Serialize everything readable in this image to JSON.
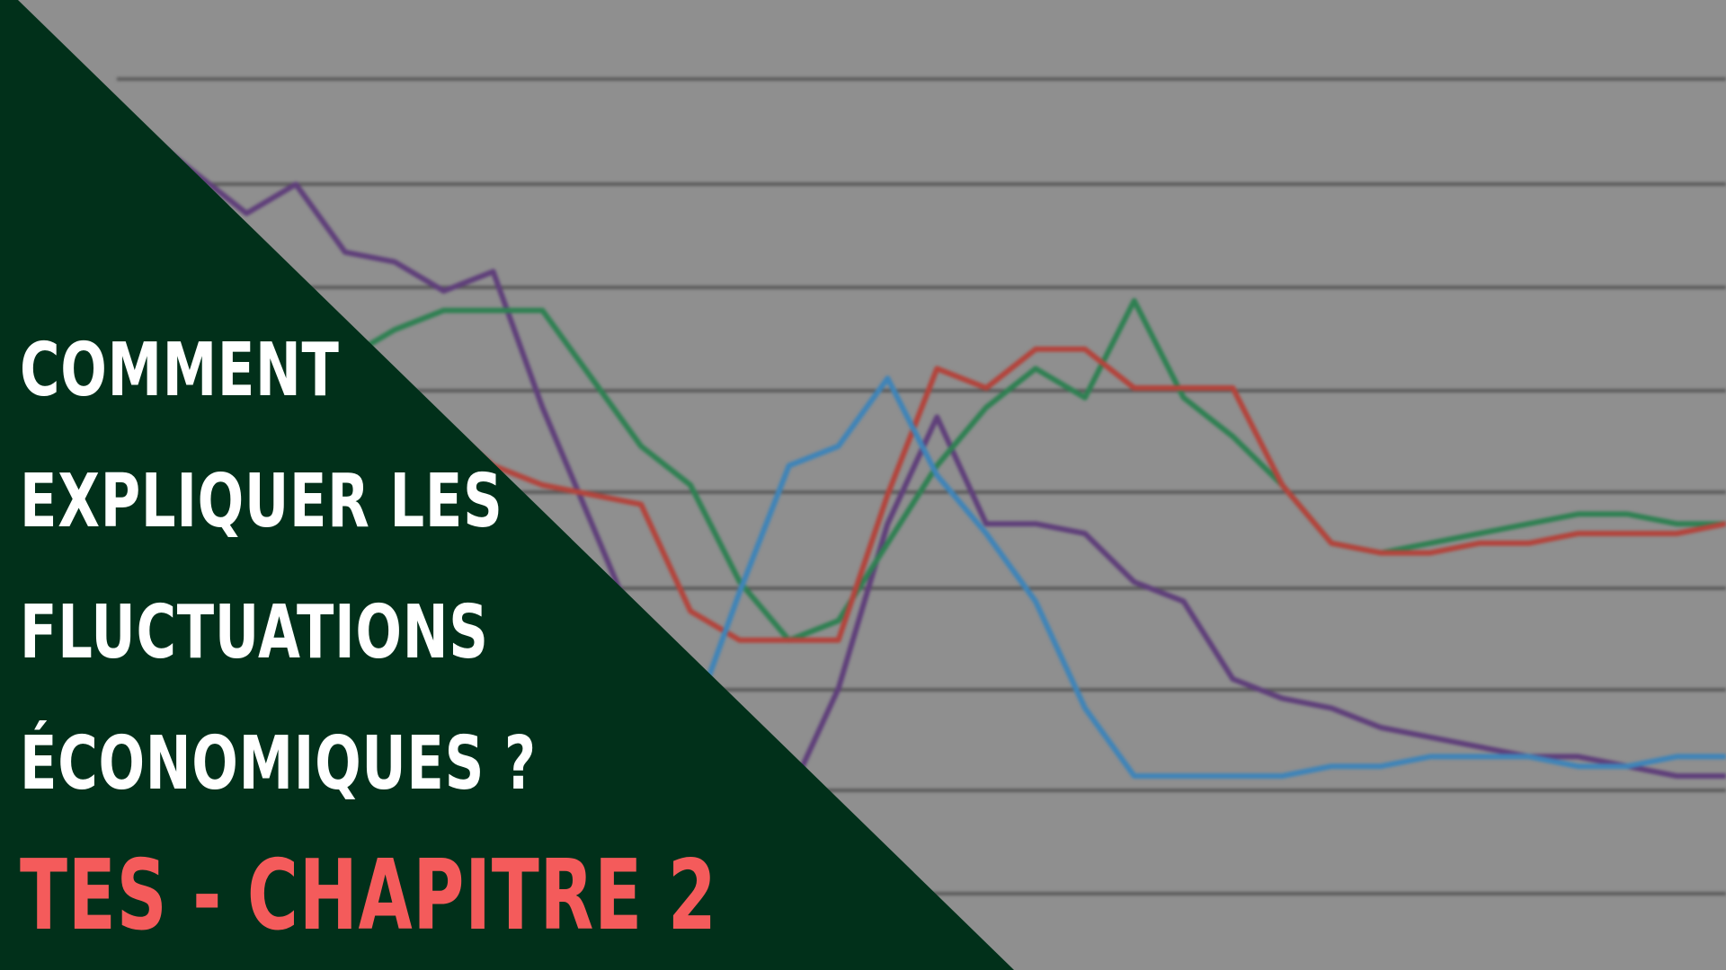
{
  "title": {
    "lines": [
      "COMMENT",
      "EXPLIQUER LES",
      "FLUCTUATIONS",
      "ÉCONOMIQUES ?"
    ]
  },
  "subtitle": "TES - CHAPITRE 2",
  "colors": {
    "background": "#8f8f8f",
    "triangle": "#01301a",
    "title_text": "#ffffff",
    "subtitle_text": "#f45b5b",
    "gridline": "#5b5b5b",
    "series": [
      "#5f3f7a",
      "#2f8052",
      "#b3443c",
      "#3f84b8"
    ]
  },
  "chart_data": {
    "type": "line",
    "title": "",
    "xlabel": "",
    "ylabel": "",
    "grid": true,
    "x": [
      0,
      1,
      2,
      3,
      4,
      5,
      6,
      7,
      8,
      9,
      10,
      11,
      12,
      13,
      14,
      15,
      16,
      17,
      18,
      19,
      20,
      21,
      22,
      23,
      24,
      25,
      26,
      27,
      28,
      29,
      30,
      31,
      32,
      33,
      34,
      35
    ],
    "ylim": [
      0,
      100
    ],
    "series": [
      {
        "values": [
          80,
          83,
          79,
          86,
          82,
          78,
          81,
          74,
          73,
          70,
          72,
          58,
          46,
          34,
          16,
          5,
          18,
          29,
          46,
          57,
          46,
          46,
          45,
          40,
          38,
          30,
          28,
          27,
          25,
          24,
          23,
          22,
          22,
          21,
          20,
          20
        ]
      },
      {
        "values": [
          60,
          61,
          63,
          64,
          62,
          67,
          67,
          63,
          66,
          68,
          68,
          68,
          61,
          54,
          50,
          40,
          34,
          36,
          44,
          52,
          58,
          62,
          59,
          69,
          59,
          55,
          50,
          44,
          43,
          44,
          45,
          46,
          47,
          47,
          46,
          46
        ]
      },
      {
        "values": [
          58,
          60,
          66,
          65,
          65,
          56,
          62,
          54,
          55,
          56,
          52,
          50,
          49,
          48,
          37,
          34,
          34,
          34,
          49,
          62,
          60,
          64,
          64,
          60,
          60,
          60,
          50,
          44,
          43,
          43,
          44,
          44,
          45,
          45,
          45,
          46
        ]
      },
      {
        "values": [
          52,
          54,
          55,
          58,
          56,
          54,
          53,
          48,
          47,
          45,
          38,
          38,
          24,
          18,
          25,
          39,
          52,
          54,
          61,
          51,
          45,
          38,
          27,
          20,
          20,
          20,
          20,
          21,
          21,
          22,
          22,
          22,
          21,
          21,
          22,
          22
        ]
      }
    ]
  }
}
